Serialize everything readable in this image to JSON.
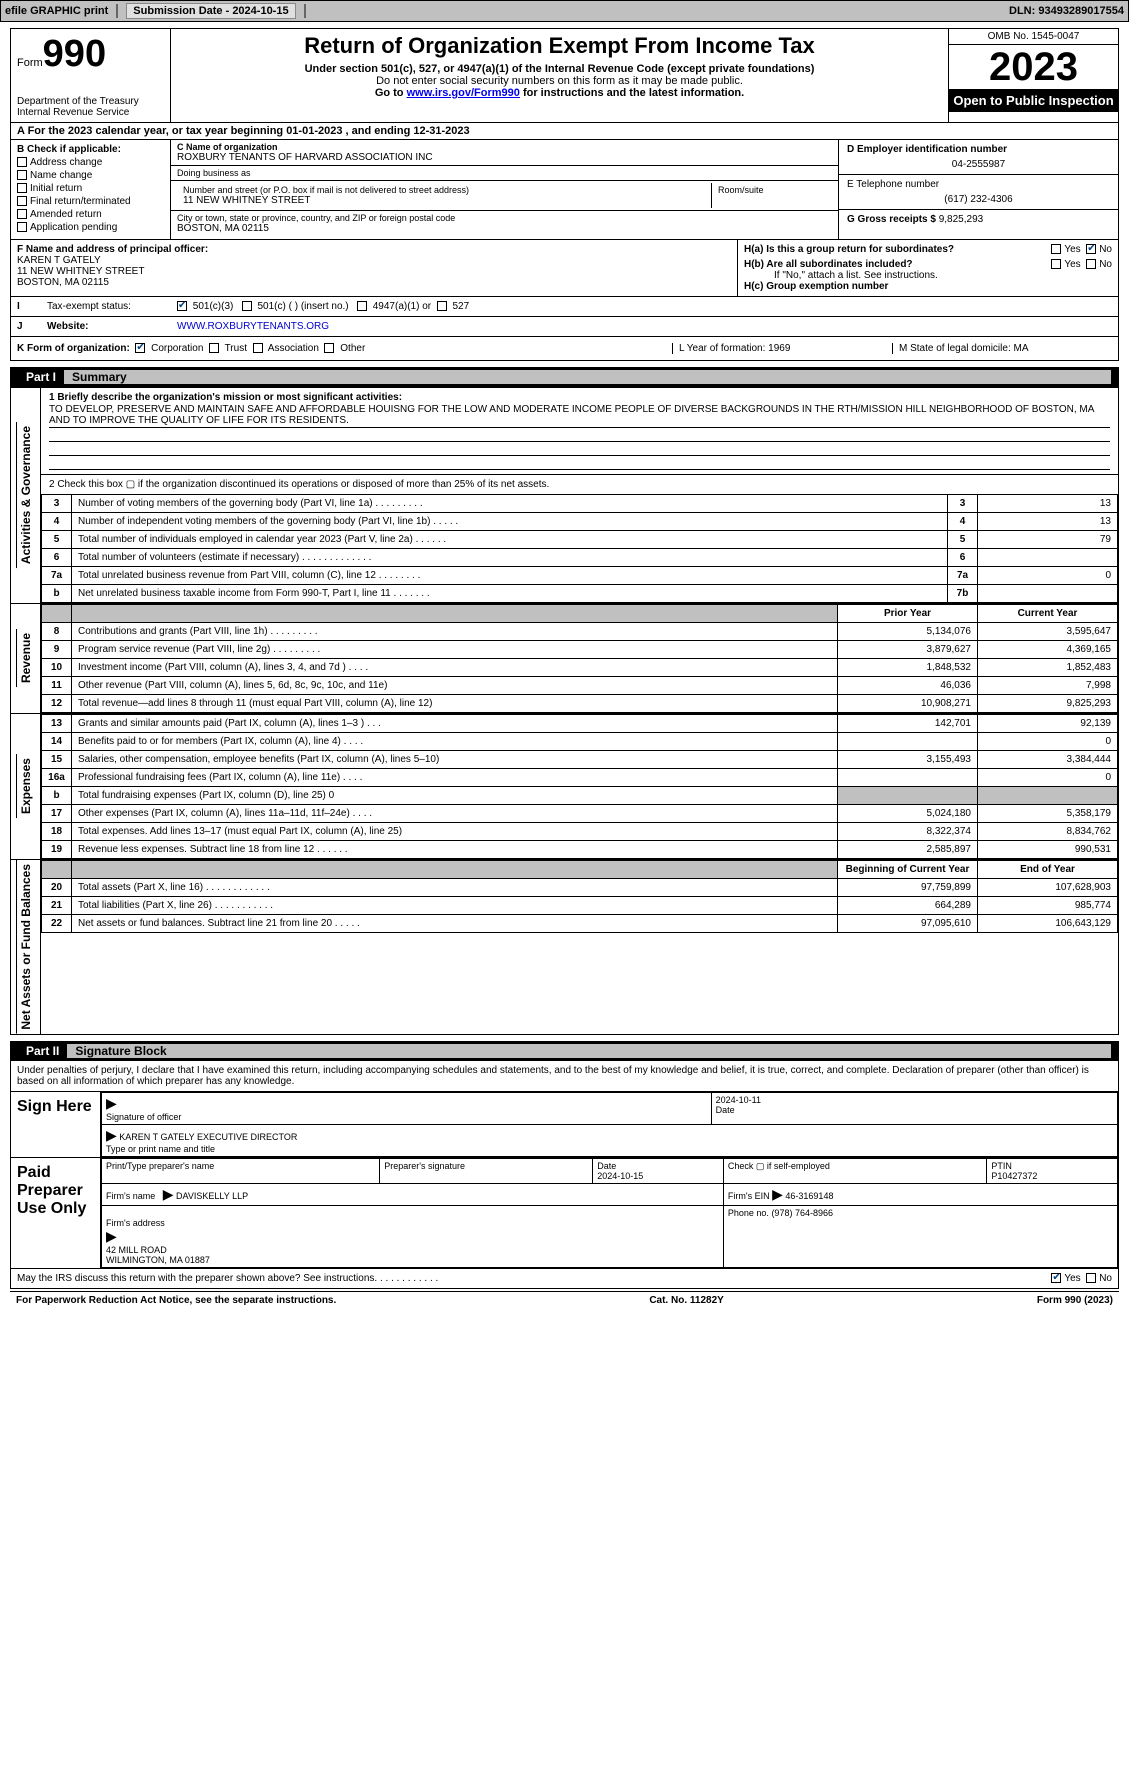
{
  "topbar": {
    "efile": "efile GRAPHIC print",
    "submission": "Submission Date - 2024-10-15",
    "dln": "DLN: 93493289017554"
  },
  "header": {
    "form_label": "Form",
    "form_num": "990",
    "dept": "Department of the Treasury\nInternal Revenue Service",
    "title": "Return of Organization Exempt From Income Tax",
    "sub1": "Under section 501(c), 527, or 4947(a)(1) of the Internal Revenue Code (except private foundations)",
    "sub2": "Do not enter social security numbers on this form as it may be made public.",
    "sub3_pre": "Go to ",
    "sub3_link": "www.irs.gov/Form990",
    "sub3_post": " for instructions and the latest information.",
    "omb": "OMB No. 1545-0047",
    "year": "2023",
    "public": "Open to Public Inspection"
  },
  "rowA": "A  For the 2023 calendar year, or tax year beginning 01-01-2023    , and ending 12-31-2023",
  "boxB": {
    "title": "B Check if applicable:",
    "opts": [
      "Address change",
      "Name change",
      "Initial return",
      "Final return/terminated",
      "Amended return",
      "Application pending"
    ]
  },
  "boxC": {
    "name_lbl": "C Name of organization",
    "name": "ROXBURY TENANTS OF HARVARD ASSOCIATION INC",
    "dba_lbl": "Doing business as",
    "dba": "",
    "street_lbl": "Number and street (or P.O. box if mail is not delivered to street address)",
    "room_lbl": "Room/suite",
    "street": "11 NEW WHITNEY STREET",
    "city_lbl": "City or town, state or province, country, and ZIP or foreign postal code",
    "city": "BOSTON, MA  02115"
  },
  "boxD": {
    "lbl": "D Employer identification number",
    "val": "04-2555987"
  },
  "boxE": {
    "lbl": "E Telephone number",
    "val": "(617) 232-4306"
  },
  "boxG": {
    "lbl": "G Gross receipts $",
    "val": "9,825,293"
  },
  "boxF": {
    "lbl": "F  Name and address of principal officer:",
    "name": "KAREN T GATELY",
    "street": "11 NEW WHITNEY STREET",
    "city": "BOSTON, MA  02115"
  },
  "boxH": {
    "a_lbl": "H(a)  Is this a group return for subordinates?",
    "a_yes": "Yes",
    "a_no": "No",
    "b_lbl": "H(b)  Are all subordinates included?",
    "b_note": "If \"No,\" attach a list. See instructions.",
    "c_lbl": "H(c)  Group exemption number"
  },
  "rowI": {
    "lbl": "Tax-exempt status:",
    "opts": [
      "501(c)(3)",
      "501(c) (  ) (insert no.)",
      "4947(a)(1) or",
      "527"
    ]
  },
  "rowJ": {
    "lbl": "Website:",
    "val": "WWW.ROXBURYTENANTS.ORG"
  },
  "rowK": {
    "lbl": "K Form of organization:",
    "opts": [
      "Corporation",
      "Trust",
      "Association",
      "Other"
    ],
    "L": "L Year of formation: 1969",
    "M": "M State of legal domicile: MA"
  },
  "part1": {
    "num": "Part I",
    "title": "Summary"
  },
  "vtabs": {
    "gov": "Activities & Governance",
    "rev": "Revenue",
    "exp": "Expenses",
    "net": "Net Assets or Fund Balances"
  },
  "summary": {
    "mission_lbl": "1   Briefly describe the organization's mission or most significant activities:",
    "mission": "TO DEVELOP, PRESERVE AND MAINTAIN SAFE AND AFFORDABLE HOUISNG FOR THE LOW AND MODERATE INCOME PEOPLE OF DIVERSE BACKGROUNDS IN THE RTH/MISSION HILL NEIGHBORHOOD OF BOSTON, MA AND TO IMPROVE THE QUALITY OF LIFE FOR ITS RESIDENTS.",
    "line2": "2   Check this box ▢ if the organization discontinued its operations or disposed of more than 25% of its net assets.",
    "lines_gov": [
      {
        "n": "3",
        "d": "Number of voting members of the governing body (Part VI, line 1a)   .   .   .   .   .   .   .   .   .",
        "b": "3",
        "v": "13"
      },
      {
        "n": "4",
        "d": "Number of independent voting members of the governing body (Part VI, line 1b)   .   .   .   .   .",
        "b": "4",
        "v": "13"
      },
      {
        "n": "5",
        "d": "Total number of individuals employed in calendar year 2023 (Part V, line 2a)   .   .   .   .   .   .",
        "b": "5",
        "v": "79"
      },
      {
        "n": "6",
        "d": "Total number of volunteers (estimate if necessary)   .   .   .   .   .   .   .   .   .   .   .   .   .",
        "b": "6",
        "v": ""
      },
      {
        "n": "7a",
        "d": "Total unrelated business revenue from Part VIII, column (C), line 12   .   .   .   .   .   .   .   .",
        "b": "7a",
        "v": "0"
      },
      {
        "n": "b",
        "d": "Net unrelated business taxable income from Form 990-T, Part I, line 11   .   .   .   .   .   .   .",
        "b": "7b",
        "v": ""
      }
    ],
    "hdr_prior": "Prior Year",
    "hdr_curr": "Current Year",
    "lines_rev": [
      {
        "n": "8",
        "d": "Contributions and grants (Part VIII, line 1h)   .   .   .   .   .   .   .   .   .",
        "p": "5,134,076",
        "c": "3,595,647"
      },
      {
        "n": "9",
        "d": "Program service revenue (Part VIII, line 2g)   .   .   .   .   .   .   .   .   .",
        "p": "3,879,627",
        "c": "4,369,165"
      },
      {
        "n": "10",
        "d": "Investment income (Part VIII, column (A), lines 3, 4, and 7d )   .   .   .   .",
        "p": "1,848,532",
        "c": "1,852,483"
      },
      {
        "n": "11",
        "d": "Other revenue (Part VIII, column (A), lines 5, 6d, 8c, 9c, 10c, and 11e)",
        "p": "46,036",
        "c": "7,998"
      },
      {
        "n": "12",
        "d": "Total revenue—add lines 8 through 11 (must equal Part VIII, column (A), line 12)",
        "p": "10,908,271",
        "c": "9,825,293"
      }
    ],
    "lines_exp": [
      {
        "n": "13",
        "d": "Grants and similar amounts paid (Part IX, column (A), lines 1–3 )   .   .   .",
        "p": "142,701",
        "c": "92,139"
      },
      {
        "n": "14",
        "d": "Benefits paid to or for members (Part IX, column (A), line 4)   .   .   .   .",
        "p": "",
        "c": "0"
      },
      {
        "n": "15",
        "d": "Salaries, other compensation, employee benefits (Part IX, column (A), lines 5–10)",
        "p": "3,155,493",
        "c": "3,384,444"
      },
      {
        "n": "16a",
        "d": "Professional fundraising fees (Part IX, column (A), line 11e)   .   .   .   .",
        "p": "",
        "c": "0"
      },
      {
        "n": "b",
        "d": "Total fundraising expenses (Part IX, column (D), line 25) 0",
        "p": "grey",
        "c": "grey"
      },
      {
        "n": "17",
        "d": "Other expenses (Part IX, column (A), lines 11a–11d, 11f–24e)   .   .   .   .",
        "p": "5,024,180",
        "c": "5,358,179"
      },
      {
        "n": "18",
        "d": "Total expenses. Add lines 13–17 (must equal Part IX, column (A), line 25)",
        "p": "8,322,374",
        "c": "8,834,762"
      },
      {
        "n": "19",
        "d": "Revenue less expenses. Subtract line 18 from line 12   .   .   .   .   .   .",
        "p": "2,585,897",
        "c": "990,531"
      }
    ],
    "hdr_beg": "Beginning of Current Year",
    "hdr_end": "End of Year",
    "lines_net": [
      {
        "n": "20",
        "d": "Total assets (Part X, line 16)   .   .   .   .   .   .   .   .   .   .   .   .",
        "p": "97,759,899",
        "c": "107,628,903"
      },
      {
        "n": "21",
        "d": "Total liabilities (Part X, line 26)   .   .   .   .   .   .   .   .   .   .   .",
        "p": "664,289",
        "c": "985,774"
      },
      {
        "n": "22",
        "d": "Net assets or fund balances. Subtract line 21 from line 20   .   .   .   .   .",
        "p": "97,095,610",
        "c": "106,643,129"
      }
    ]
  },
  "part2": {
    "num": "Part II",
    "title": "Signature Block"
  },
  "sig": {
    "intro": "Under penalties of perjury, I declare that I have examined this return, including accompanying schedules and statements, and to the best of my knowledge and belief, it is true, correct, and complete. Declaration of preparer (other than officer) is based on all information of which preparer has any knowledge.",
    "here": "Sign Here",
    "sig_officer": "Signature of officer",
    "date_val": "2024-10-11",
    "date_lbl": "Date",
    "officer": "KAREN T GATELY  EXECUTIVE DIRECTOR",
    "officer_lbl": "Type or print name and title",
    "paid": "Paid Preparer Use Only",
    "prep_name_lbl": "Print/Type preparer's name",
    "prep_sig_lbl": "Preparer's signature",
    "prep_date_lbl": "Date",
    "prep_date": "2024-10-15",
    "check_lbl": "Check ▢ if self-employed",
    "ptin_lbl": "PTIN",
    "ptin": "P10427372",
    "firm_name_lbl": "Firm's name",
    "firm_name": "DAVISKELLY LLP",
    "firm_ein_lbl": "Firm's EIN",
    "firm_ein": "46-3169148",
    "firm_addr_lbl": "Firm's address",
    "firm_addr": "42 MILL ROAD\nWILMINGTON, MA  01887",
    "phone_lbl": "Phone no.",
    "phone": "(978) 764-8966",
    "discuss": "May the IRS discuss this return with the preparer shown above? See instructions.   .   .   .   .   .   .   .   .   .   .   .",
    "yes": "Yes",
    "no": "No"
  },
  "footer": {
    "left": "For Paperwork Reduction Act Notice, see the separate instructions.",
    "mid": "Cat. No. 11282Y",
    "right": "Form 990 (2023)"
  }
}
